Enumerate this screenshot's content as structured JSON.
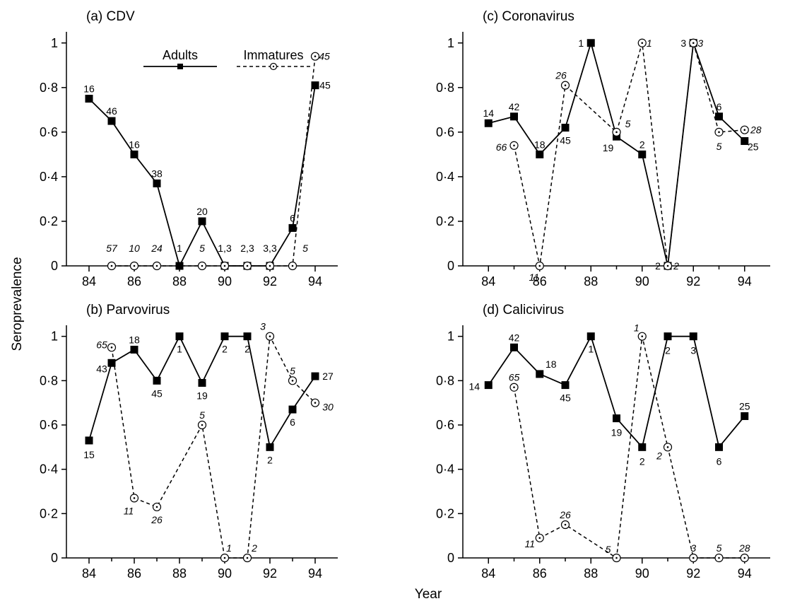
{
  "figure": {
    "y_axis_label": "Seroprevalence",
    "x_axis_label": "Year"
  },
  "chart_data": [
    {
      "type": "line",
      "title": "(a)  CDV",
      "x": [
        84,
        85,
        86,
        87,
        88,
        89,
        90,
        91,
        92,
        93,
        94
      ],
      "xlim": [
        83,
        95
      ],
      "ylim": [
        0,
        1.05
      ],
      "x_ticks": [
        84,
        86,
        88,
        90,
        92,
        94
      ],
      "x_tick_labels": [
        "84",
        "86",
        "88",
        "90",
        "92",
        "94"
      ],
      "y_ticks": [
        0,
        0.2,
        0.4,
        0.6,
        0.8,
        1
      ],
      "y_tick_labels": [
        "0",
        "0·2",
        "0·4",
        "0·6",
        "0·8",
        "1"
      ],
      "legend": {
        "position": "top",
        "entries": [
          {
            "series": "Adults",
            "marker": "square"
          },
          {
            "series": "Immatures",
            "marker": "circle"
          }
        ]
      },
      "series": [
        {
          "name": "Adults",
          "style": "solid",
          "marker": "square",
          "points": [
            {
              "x": 84,
              "y": 0.75,
              "n": "16"
            },
            {
              "x": 85,
              "y": 0.65,
              "n": "46"
            },
            {
              "x": 86,
              "y": 0.5,
              "n": "16"
            },
            {
              "x": 87,
              "y": 0.37,
              "n": "38"
            },
            {
              "x": 88,
              "y": 0.0,
              "n": "1"
            },
            {
              "x": 89,
              "y": 0.2,
              "n": "20"
            },
            {
              "x": 90,
              "y": 0.0,
              "n": "1"
            },
            {
              "x": 91,
              "y": 0.0,
              "n": "2"
            },
            {
              "x": 92,
              "y": 0.0,
              "n": "3"
            },
            {
              "x": 93,
              "y": 0.17,
              "n": "6"
            },
            {
              "x": 94,
              "y": 0.81,
              "n": "45"
            }
          ]
        },
        {
          "name": "Immatures",
          "style": "dashed",
          "marker": "circle",
          "points": [
            {
              "x": 85,
              "y": 0,
              "n": "57"
            },
            {
              "x": 86,
              "y": 0,
              "n": "10"
            },
            {
              "x": 87,
              "y": 0,
              "n": "24"
            },
            {
              "x": 89,
              "y": 0,
              "n": "5"
            },
            {
              "x": 90,
              "y": 0,
              "n": "3"
            },
            {
              "x": 91,
              "y": 0,
              "n": "3"
            },
            {
              "x": 92,
              "y": 0,
              "n": "3"
            },
            {
              "x": 93,
              "y": 0,
              "n": "5"
            },
            {
              "x": 94,
              "y": 0.94,
              "n": "45"
            }
          ]
        }
      ],
      "annotations": [
        "57",
        "10",
        "24",
        "1",
        "5",
        "1,3",
        "2,3",
        "3,3",
        "5"
      ]
    },
    {
      "type": "line",
      "title": "(c)  Coronavirus",
      "x": [
        84,
        85,
        86,
        87,
        88,
        89,
        90,
        91,
        92,
        93,
        94
      ],
      "xlim": [
        83,
        95
      ],
      "ylim": [
        0,
        1.05
      ],
      "x_ticks": [
        84,
        86,
        88,
        90,
        92,
        94
      ],
      "x_tick_labels": [
        "84",
        "86",
        "88",
        "90",
        "92",
        "94"
      ],
      "y_ticks": [
        0,
        0.2,
        0.4,
        0.6,
        0.8,
        1
      ],
      "y_tick_labels": [
        "0",
        "0·2",
        "0·4",
        "0·6",
        "0·8",
        "1"
      ],
      "series": [
        {
          "name": "Adults",
          "style": "solid",
          "marker": "square",
          "points": [
            {
              "x": 84,
              "y": 0.64,
              "n": "14"
            },
            {
              "x": 85,
              "y": 0.67,
              "n": "42"
            },
            {
              "x": 86,
              "y": 0.5,
              "n": "18"
            },
            {
              "x": 87,
              "y": 0.62,
              "n": "45"
            },
            {
              "x": 88,
              "y": 1.0,
              "n": "1"
            },
            {
              "x": 89,
              "y": 0.58,
              "n": "19"
            },
            {
              "x": 90,
              "y": 0.5,
              "n": "2"
            },
            {
              "x": 91,
              "y": 0.0,
              "n": "2"
            },
            {
              "x": 92,
              "y": 1.0,
              "n": "3"
            },
            {
              "x": 93,
              "y": 0.67,
              "n": "6"
            },
            {
              "x": 94,
              "y": 0.56,
              "n": "25"
            }
          ]
        },
        {
          "name": "Immatures",
          "style": "dashed",
          "marker": "circle",
          "points": [
            {
              "x": 85,
              "y": 0.54,
              "n": "66"
            },
            {
              "x": 86,
              "y": 0.0,
              "n": "11"
            },
            {
              "x": 87,
              "y": 0.81,
              "n": "26"
            },
            {
              "x": 89,
              "y": 0.6,
              "n": "5"
            },
            {
              "x": 90,
              "y": 1.0,
              "n": "1"
            },
            {
              "x": 91,
              "y": 0.0,
              "n": "2"
            },
            {
              "x": 92,
              "y": 1.0,
              "n": "3"
            },
            {
              "x": 93,
              "y": 0.6,
              "n": "5"
            },
            {
              "x": 94,
              "y": 0.61,
              "n": "28"
            }
          ]
        }
      ]
    },
    {
      "type": "line",
      "title": "(b)  Parvovirus",
      "x": [
        84,
        85,
        86,
        87,
        88,
        89,
        90,
        91,
        92,
        93,
        94
      ],
      "xlim": [
        83,
        95
      ],
      "ylim": [
        0,
        1.05
      ],
      "x_ticks": [
        84,
        86,
        88,
        90,
        92,
        94
      ],
      "x_tick_labels": [
        "84",
        "86",
        "88",
        "90",
        "92",
        "94"
      ],
      "y_ticks": [
        0,
        0.2,
        0.4,
        0.6,
        0.8,
        1
      ],
      "y_tick_labels": [
        "0",
        "0·2",
        "0·4",
        "0·6",
        "0·8",
        "1"
      ],
      "series": [
        {
          "name": "Adults",
          "style": "solid",
          "marker": "square",
          "points": [
            {
              "x": 84,
              "y": 0.53,
              "n": "15"
            },
            {
              "x": 85,
              "y": 0.88,
              "n": "43"
            },
            {
              "x": 86,
              "y": 0.94,
              "n": "18"
            },
            {
              "x": 87,
              "y": 0.8,
              "n": "45"
            },
            {
              "x": 88,
              "y": 1.0,
              "n": "1"
            },
            {
              "x": 89,
              "y": 0.79,
              "n": "19"
            },
            {
              "x": 90,
              "y": 1.0,
              "n": "2"
            },
            {
              "x": 91,
              "y": 1.0,
              "n": "2"
            },
            {
              "x": 92,
              "y": 0.5,
              "n": "2"
            },
            {
              "x": 93,
              "y": 0.67,
              "n": "6"
            },
            {
              "x": 94,
              "y": 0.82,
              "n": "27"
            }
          ]
        },
        {
          "name": "Immatures",
          "style": "dashed",
          "marker": "circle",
          "points": [
            {
              "x": 85,
              "y": 0.95,
              "n": "65"
            },
            {
              "x": 86,
              "y": 0.27,
              "n": "11"
            },
            {
              "x": 87,
              "y": 0.23,
              "n": "26"
            },
            {
              "x": 89,
              "y": 0.6,
              "n": "5"
            },
            {
              "x": 90,
              "y": 0.0,
              "n": "1"
            },
            {
              "x": 91,
              "y": 0.0,
              "n": "2"
            },
            {
              "x": 92,
              "y": 1.0,
              "n": "3"
            },
            {
              "x": 93,
              "y": 0.8,
              "n": "5"
            },
            {
              "x": 94,
              "y": 0.7,
              "n": "30"
            }
          ]
        }
      ]
    },
    {
      "type": "line",
      "title": "(d)  Calicivirus",
      "x": [
        84,
        85,
        86,
        87,
        88,
        89,
        90,
        91,
        92,
        93,
        94
      ],
      "xlim": [
        83,
        95
      ],
      "ylim": [
        0,
        1.05
      ],
      "x_ticks": [
        84,
        86,
        88,
        90,
        92,
        94
      ],
      "x_tick_labels": [
        "84",
        "86",
        "88",
        "90",
        "92",
        "94"
      ],
      "y_ticks": [
        0,
        0.2,
        0.4,
        0.6,
        0.8,
        1
      ],
      "y_tick_labels": [
        "0",
        "0·2",
        "0·4",
        "0·6",
        "0·8",
        "1"
      ],
      "series": [
        {
          "name": "Adults",
          "style": "solid",
          "marker": "square",
          "points": [
            {
              "x": 84,
              "y": 0.78,
              "n": "14"
            },
            {
              "x": 85,
              "y": 0.95,
              "n": "42"
            },
            {
              "x": 86,
              "y": 0.83,
              "n": "18"
            },
            {
              "x": 87,
              "y": 0.78,
              "n": "45"
            },
            {
              "x": 88,
              "y": 1.0,
              "n": "1"
            },
            {
              "x": 89,
              "y": 0.63,
              "n": "19"
            },
            {
              "x": 90,
              "y": 0.5,
              "n": "2"
            },
            {
              "x": 91,
              "y": 1.0,
              "n": "2"
            },
            {
              "x": 92,
              "y": 1.0,
              "n": "3"
            },
            {
              "x": 93,
              "y": 0.5,
              "n": "6"
            },
            {
              "x": 94,
              "y": 0.64,
              "n": "25"
            }
          ]
        },
        {
          "name": "Immatures",
          "style": "dashed",
          "marker": "circle",
          "points": [
            {
              "x": 85,
              "y": 0.77,
              "n": "65"
            },
            {
              "x": 86,
              "y": 0.09,
              "n": "11"
            },
            {
              "x": 87,
              "y": 0.15,
              "n": "26"
            },
            {
              "x": 89,
              "y": 0.0,
              "n": "5"
            },
            {
              "x": 90,
              "y": 1.0,
              "n": "1"
            },
            {
              "x": 91,
              "y": 0.5,
              "n": "2"
            },
            {
              "x": 92,
              "y": 0.0,
              "n": "3"
            },
            {
              "x": 93,
              "y": 0.0,
              "n": "5"
            },
            {
              "x": 94,
              "y": 0.0,
              "n": "28"
            }
          ]
        }
      ]
    }
  ]
}
